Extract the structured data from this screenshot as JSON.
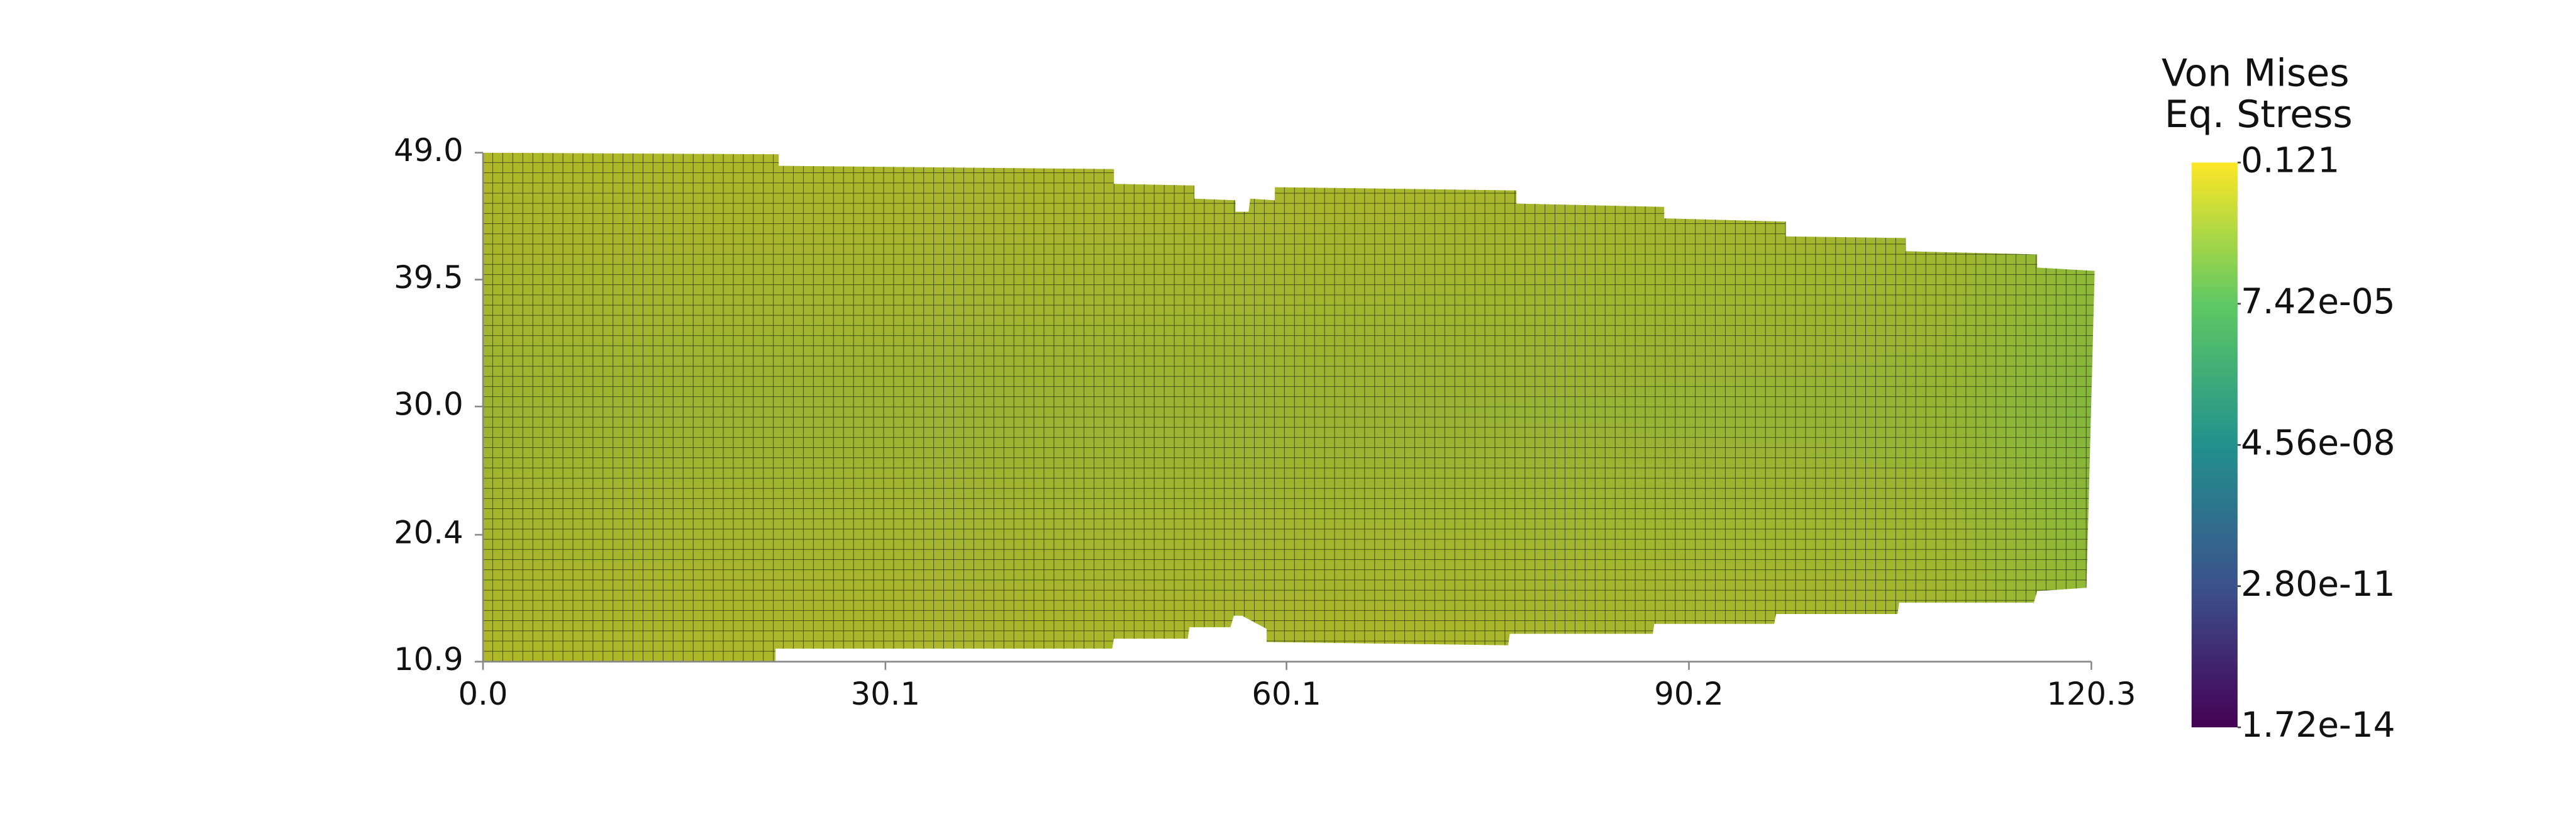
{
  "chart_data": {
    "type": "mesh",
    "xlim": [
      0,
      120.3
    ],
    "xticks": [
      {
        "value": 0,
        "label": "0.0"
      },
      30.1,
      60.1,
      90.2,
      120.3
    ],
    "ylim": [
      10.9,
      49.0
    ],
    "yticks": [
      10.9,
      20.4,
      {
        "value": 30,
        "label": "30.0"
      },
      39.5,
      {
        "value": 49,
        "label": "49.0"
      }
    ],
    "grid": false,
    "colorbar": {
      "title": [
        "Von Mises",
        "Eq. Stress"
      ],
      "lim": [
        1.72e-14,
        0.121
      ],
      "log_scale": true,
      "ticks": [
        {
          "value": 1.72e-14,
          "label": "1.72e-14"
        },
        {
          "value": 2.8e-11,
          "label": "2.80e-11"
        },
        {
          "value": 4.56e-08,
          "label": "4.56e-08"
        },
        {
          "value": 7.42e-05,
          "label": "7.42e-05"
        },
        0.121
      ],
      "colormap": [
        "#440154",
        "#3b528b",
        "#21918c",
        "#5ec962",
        "#fde725"
      ]
    }
  }
}
